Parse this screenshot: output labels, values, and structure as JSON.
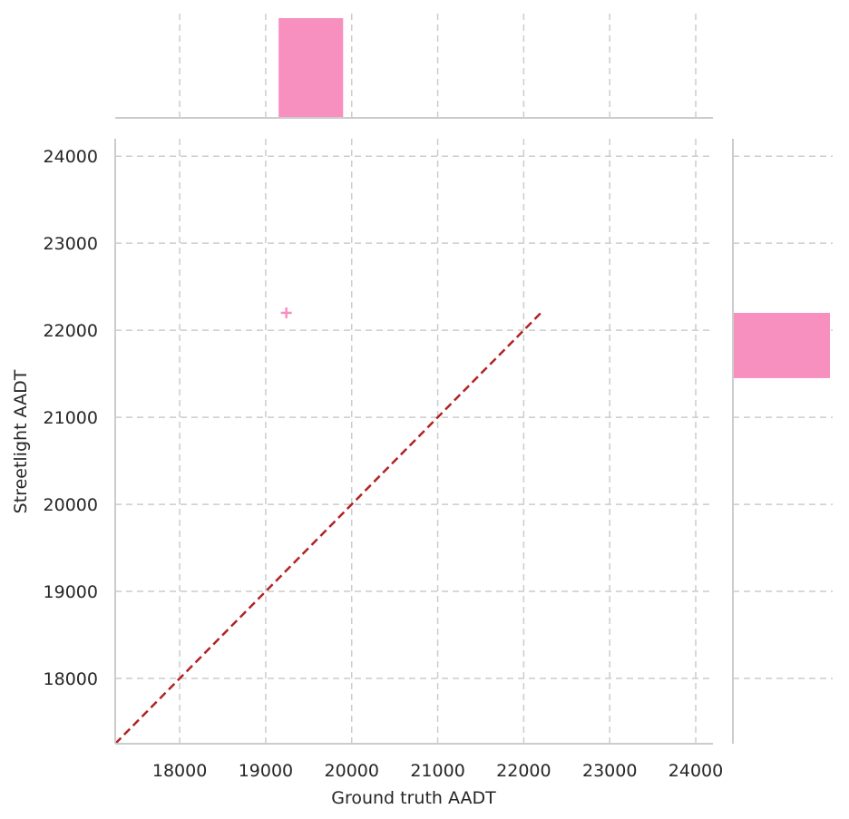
{
  "chart_data": {
    "type": "scatter",
    "xlabel": "Ground truth AADT",
    "ylabel": "Streetlight AADT",
    "xlim": [
      17250,
      24200
    ],
    "ylim": [
      17250,
      24200
    ],
    "x_ticks": [
      18000,
      19000,
      20000,
      21000,
      22000,
      23000,
      24000
    ],
    "y_ticks": [
      18000,
      19000,
      20000,
      21000,
      22000,
      23000,
      24000
    ],
    "grid": true,
    "grid_style": "dashed",
    "marker": "+",
    "points": [
      {
        "x": 19240,
        "y": 22200
      }
    ],
    "reference_line": {
      "from": [
        17250,
        17250
      ],
      "to": [
        22200,
        22200
      ],
      "style": "dashed",
      "color": "#b22222"
    },
    "marginal_x_histogram": {
      "bins": [
        {
          "start": 19150,
          "end": 19900,
          "count": 1
        }
      ]
    },
    "marginal_y_histogram": {
      "bins": [
        {
          "start": 21450,
          "end": 22200,
          "count": 1
        }
      ]
    },
    "colors": {
      "points": "#f78fbf",
      "histogram": "#f78fbf",
      "grid": "#cccccc",
      "axis": "#cccccc",
      "reference": "#b22222"
    }
  }
}
